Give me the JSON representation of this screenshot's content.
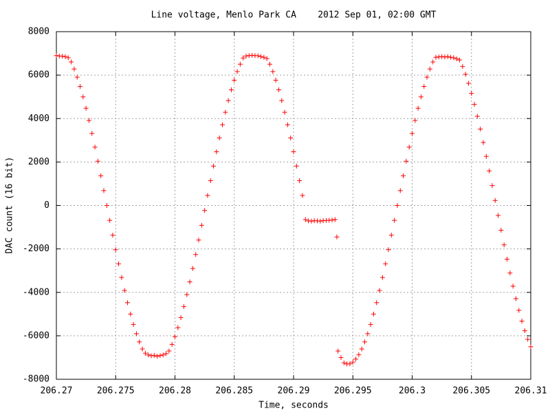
{
  "chart_data": {
    "type": "scatter",
    "title": "Line voltage, Menlo Park CA    2012 Sep 01, 02:00 GMT",
    "xlabel": "Time, seconds",
    "ylabel": "DAC count (16 bit)",
    "color": "#ff0000",
    "grid": true,
    "xlim": [
      206.27,
      206.31
    ],
    "ylim": [
      -8000,
      8000
    ],
    "xticks": [
      206.27,
      206.275,
      206.28,
      206.285,
      206.29,
      206.295,
      206.3,
      206.305,
      206.31
    ],
    "yticks": [
      -8000,
      -6000,
      -4000,
      -2000,
      0,
      2000,
      4000,
      6000,
      8000
    ],
    "x": [
      206.27,
      206.27025,
      206.2705,
      206.27075,
      206.271,
      206.27125,
      206.2715,
      206.27175,
      206.272,
      206.27225,
      206.2725,
      206.27275,
      206.273,
      206.27325,
      206.2735,
      206.27375,
      206.274,
      206.27425,
      206.2745,
      206.27475,
      206.275,
      206.27525,
      206.2755,
      206.27575,
      206.276,
      206.27625,
      206.2765,
      206.27675,
      206.277,
      206.27725,
      206.2775,
      206.27775,
      206.278,
      206.27825,
      206.2785,
      206.27875,
      206.279,
      206.27925,
      206.2795,
      206.27975,
      206.28,
      206.28025,
      206.2805,
      206.28075,
      206.281,
      206.28125,
      206.2815,
      206.28175,
      206.282,
      206.28225,
      206.2825,
      206.28275,
      206.283,
      206.28325,
      206.2835,
      206.28375,
      206.284,
      206.28425,
      206.2845,
      206.28475,
      206.285,
      206.28525,
      206.2855,
      206.28575,
      206.286,
      206.28625,
      206.2865,
      206.28675,
      206.287,
      206.28725,
      206.2875,
      206.28775,
      206.288,
      206.28825,
      206.2885,
      206.28875,
      206.289,
      206.28925,
      206.2895,
      206.28975,
      206.29,
      206.29025,
      206.2905,
      206.29075,
      206.291,
      206.29125,
      206.2915,
      206.29175,
      206.292,
      206.29225,
      206.2925,
      206.29275,
      206.293,
      206.29325,
      206.2935,
      206.29365,
      206.29375,
      206.294,
      206.29425,
      206.2945,
      206.29475,
      206.295,
      206.29525,
      206.2955,
      206.29575,
      206.296,
      206.29625,
      206.2965,
      206.29675,
      206.297,
      206.29725,
      206.2975,
      206.29775,
      206.298,
      206.29825,
      206.2985,
      206.29875,
      206.299,
      206.29925,
      206.2995,
      206.29975,
      206.3,
      206.30025,
      206.3005,
      206.30075,
      206.301,
      206.30125,
      206.3015,
      206.30175,
      206.302,
      206.30225,
      206.3025,
      206.30275,
      206.303,
      206.30325,
      206.3035,
      206.30375,
      206.304,
      206.30425,
      206.3045,
      206.30475,
      206.305,
      206.30525,
      206.3055,
      206.30575,
      206.306,
      206.30625,
      206.3065,
      206.30675,
      206.307,
      206.30725,
      206.3075,
      206.30775,
      206.308,
      206.30825,
      206.3085,
      206.30875,
      206.309,
      206.30925,
      206.3095,
      206.30975,
      206.31
    ],
    "values": [
      6900,
      6880,
      6870,
      6850,
      6800,
      6605,
      6283,
      5906,
      5476,
      4997,
      4474,
      3911,
      3314,
      2687,
      2036,
      1368,
      687,
      0,
      -687,
      -1368,
      -2036,
      -2687,
      -3314,
      -3911,
      -4474,
      -4997,
      -5476,
      -5906,
      -6283,
      -6605,
      -6800,
      -6880,
      -6920,
      -6900,
      -6940,
      -6910,
      -6880,
      -6820,
      -6699,
      -6397,
      -6038,
      -5625,
      -5162,
      -4653,
      -4103,
      -3517,
      -2899,
      -2256,
      -1592,
      -915,
      -229,
      458,
      1142,
      1815,
      2472,
      3108,
      3716,
      4291,
      4827,
      5321,
      5768,
      6164,
      6504,
      6787,
      6880,
      6900,
      6910,
      6900,
      6890,
      6850,
      6820,
      6760,
      6504,
      6164,
      5768,
      5321,
      4827,
      4291,
      3716,
      3108,
      2472,
      1815,
      1142,
      458,
      -650,
      -710,
      -720,
      -700,
      -710,
      -720,
      -700,
      -690,
      -680,
      -670,
      -650,
      -1450,
      -6700,
      -7000,
      -7242,
      -7296,
      -7286,
      -7210,
      -7071,
      -6868,
      -6605,
      -6283,
      -5906,
      -5476,
      -4997,
      -4474,
      -3911,
      -3314,
      -2687,
      -2036,
      -1368,
      -687,
      0,
      687,
      1368,
      2036,
      2687,
      3314,
      3911,
      4474,
      4997,
      5476,
      5906,
      6283,
      6605,
      6820,
      6840,
      6850,
      6830,
      6850,
      6820,
      6800,
      6750,
      6699,
      6397,
      6038,
      5625,
      5162,
      4653,
      4103,
      3517,
      2899,
      2256,
      1592,
      915,
      229,
      -458,
      -1142,
      -1815,
      -2472,
      -3108,
      -3716,
      -4291,
      -4827,
      -5321,
      -5768,
      -6164,
      -6504
    ]
  }
}
